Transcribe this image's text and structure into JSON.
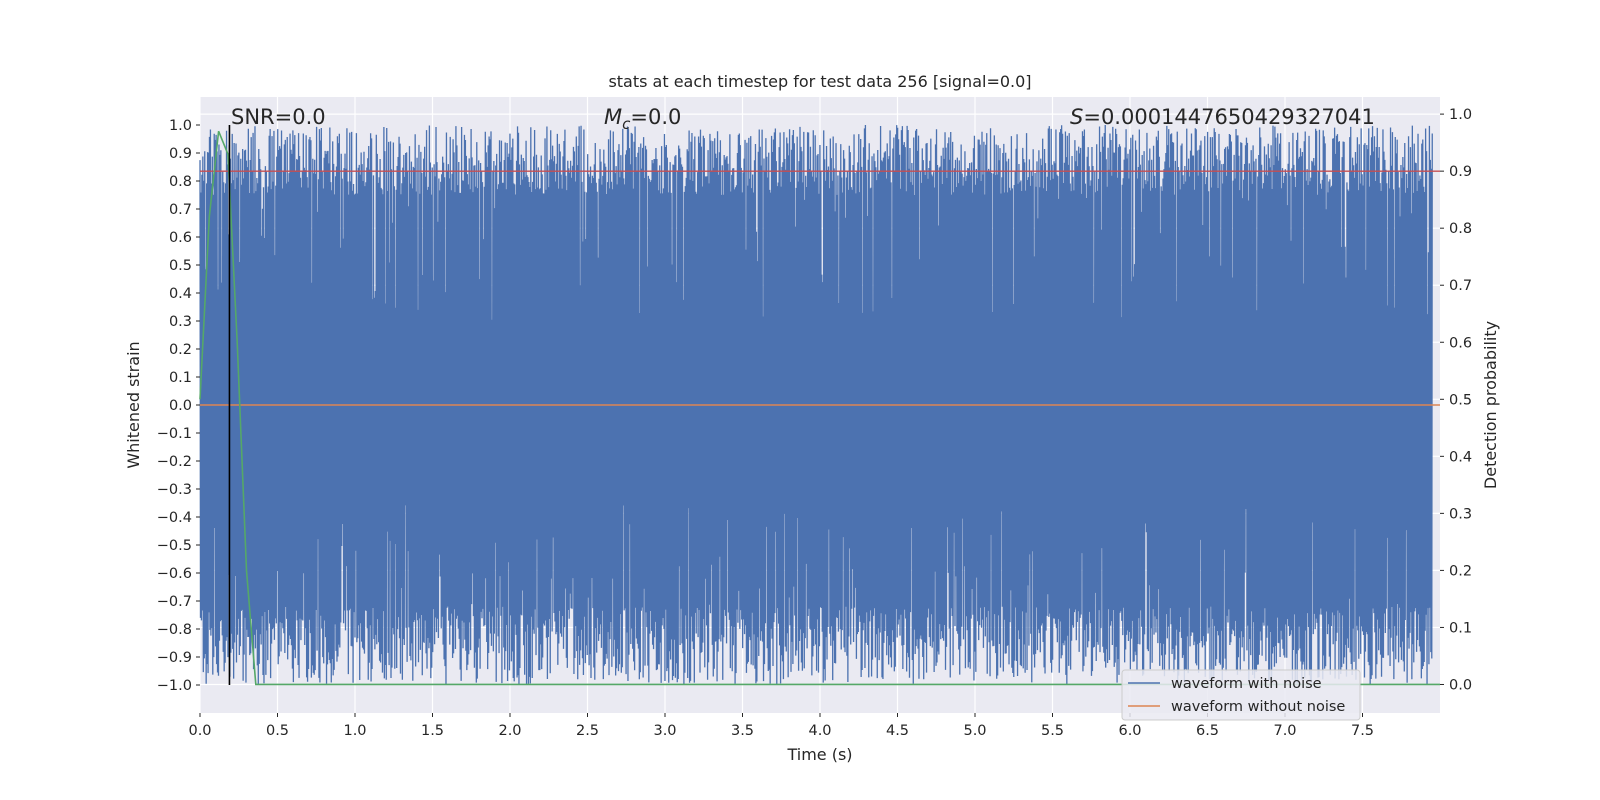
{
  "chart_data": {
    "type": "line",
    "title": "stats at each timestep for test data 256 [signal=0.0]",
    "xlabel": "Time (s)",
    "ylabel": "Whitened strain",
    "y2label": "Detection probability",
    "xlim": [
      0.0,
      8.0
    ],
    "ylim": [
      -1.1,
      1.1
    ],
    "y2lim": [
      -0.05,
      1.03
    ],
    "x_ticks": [
      0.0,
      0.5,
      1.0,
      1.5,
      2.0,
      2.5,
      3.0,
      3.5,
      4.0,
      4.5,
      5.0,
      5.5,
      6.0,
      6.5,
      7.0,
      7.5
    ],
    "x_tick_labels": [
      "0.0",
      "0.5",
      "1.0",
      "1.5",
      "2.0",
      "2.5",
      "3.0",
      "3.5",
      "4.0",
      "4.5",
      "5.0",
      "5.5",
      "6.0",
      "6.5",
      "7.0",
      "7.5"
    ],
    "y_ticks": [
      1.0,
      0.9,
      0.8,
      0.7,
      0.6,
      0.5,
      0.4,
      0.3,
      0.2,
      0.1,
      0.0,
      -0.1,
      -0.2,
      -0.3,
      -0.4,
      -0.5,
      -0.6,
      -0.7,
      -0.8,
      -0.9,
      -1.0
    ],
    "y_tick_labels": [
      "1.0",
      "0.9",
      "0.8",
      "0.7",
      "0.6",
      "0.5",
      "0.4",
      "0.3",
      "0.2",
      "0.1",
      "0.0",
      "−0.1",
      "−0.2",
      "−0.3",
      "−0.4",
      "−0.5",
      "−0.6",
      "−0.7",
      "−0.8",
      "−0.9",
      "−1.0"
    ],
    "y2_ticks": [
      1.0,
      0.9,
      0.8,
      0.7,
      0.6,
      0.5,
      0.4,
      0.3,
      0.2,
      0.1,
      0.0
    ],
    "y2_tick_labels": [
      "1.0",
      "0.9",
      "0.8",
      "0.7",
      "0.6",
      "0.5",
      "0.4",
      "0.3",
      "0.2",
      "0.1",
      "0.0"
    ],
    "grid": true,
    "legend_position": "lower-right",
    "annotations": {
      "snr": "SNR=0.0",
      "mc_symbol": "M",
      "mc_sub": "c",
      "mc_value": "=0.0",
      "s_symbol": "S",
      "s_value": "=0.0001447650429327041"
    },
    "series": [
      {
        "name": "waveform with noise",
        "color": "#4c72b0",
        "style": "dense-noise",
        "y_range": [
          -1.0,
          1.0
        ],
        "note_values": "dense whitened-noise trace spanning roughly -1.0 to 1.0 over the full time range"
      },
      {
        "name": "waveform without noise",
        "color": "#dd8452",
        "constant_y": 0.0
      }
    ],
    "detection_probability": {
      "color": "#55a868",
      "x": [
        0.0,
        0.06,
        0.12,
        0.18,
        0.24,
        0.3,
        0.36,
        0.4,
        8.0
      ],
      "y": [
        0.5,
        0.82,
        0.97,
        0.93,
        0.6,
        0.2,
        0.0,
        0.0,
        0.0
      ]
    },
    "threshold": {
      "color": "#c44e52",
      "y2": 0.9
    },
    "vertical_marker": {
      "color": "#000000",
      "x": 0.19
    }
  }
}
